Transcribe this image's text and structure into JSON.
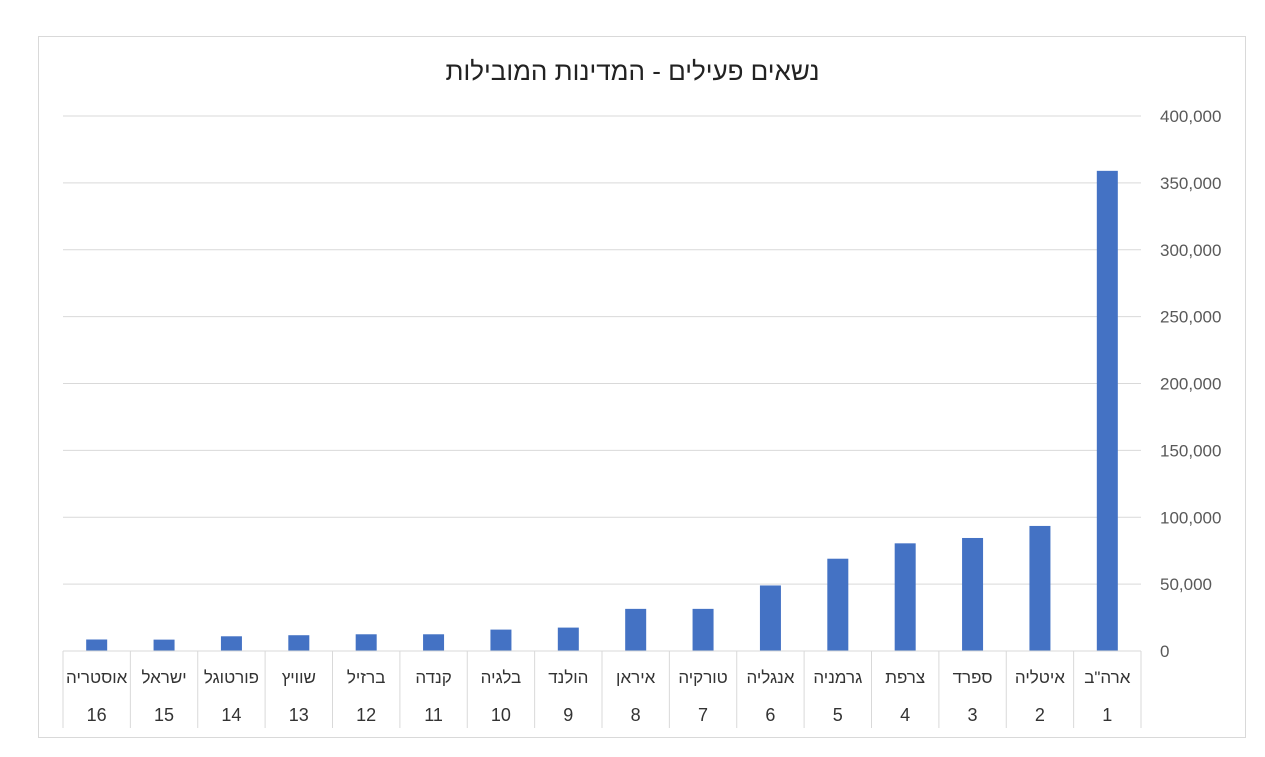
{
  "chart_data": {
    "type": "bar",
    "title": "נשאים פעילים - המדינות המובילות",
    "xlabel": "",
    "ylabel": "",
    "ylim": [
      0,
      400000
    ],
    "y_ticks": [
      "0",
      "50,000",
      "100,000",
      "150,000",
      "200,000",
      "250,000",
      "300,000",
      "350,000",
      "400,000"
    ],
    "y_axis_side": "right",
    "x_direction": "right-to-left",
    "grid": true,
    "legend": "none",
    "bar_color": "#4472c4",
    "categories": [
      "ארה\"ב",
      "איטליה",
      "ספרד",
      "צרפת",
      "גרמניה",
      "אנגליה",
      "טורקיה",
      "איראן",
      "הולנד",
      "בלגיה",
      "קנדה",
      "ברזיל",
      "שוויץ",
      "פורטוגל",
      "ישראל",
      "אוסטריה"
    ],
    "ranks": [
      "1",
      "2",
      "3",
      "4",
      "5",
      "6",
      "7",
      "8",
      "9",
      "10",
      "11",
      "12",
      "13",
      "14",
      "15",
      "16"
    ],
    "values": [
      359000,
      93500,
      84500,
      80500,
      69000,
      49000,
      31500,
      31500,
      17500,
      16000,
      12500,
      12500,
      11800,
      11000,
      8500,
      8600
    ]
  }
}
